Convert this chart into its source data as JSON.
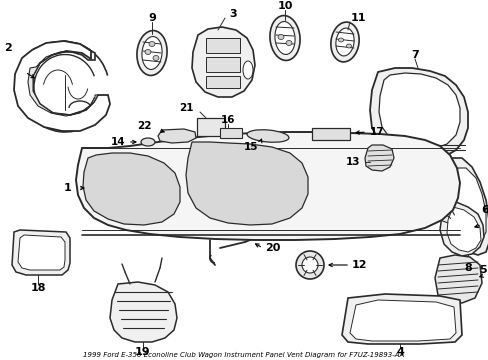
{
  "bg_color": "#ffffff",
  "line_color": "#2a2a2a",
  "text_color": "#000000",
  "fig_width": 4.89,
  "fig_height": 3.6,
  "dpi": 100
}
